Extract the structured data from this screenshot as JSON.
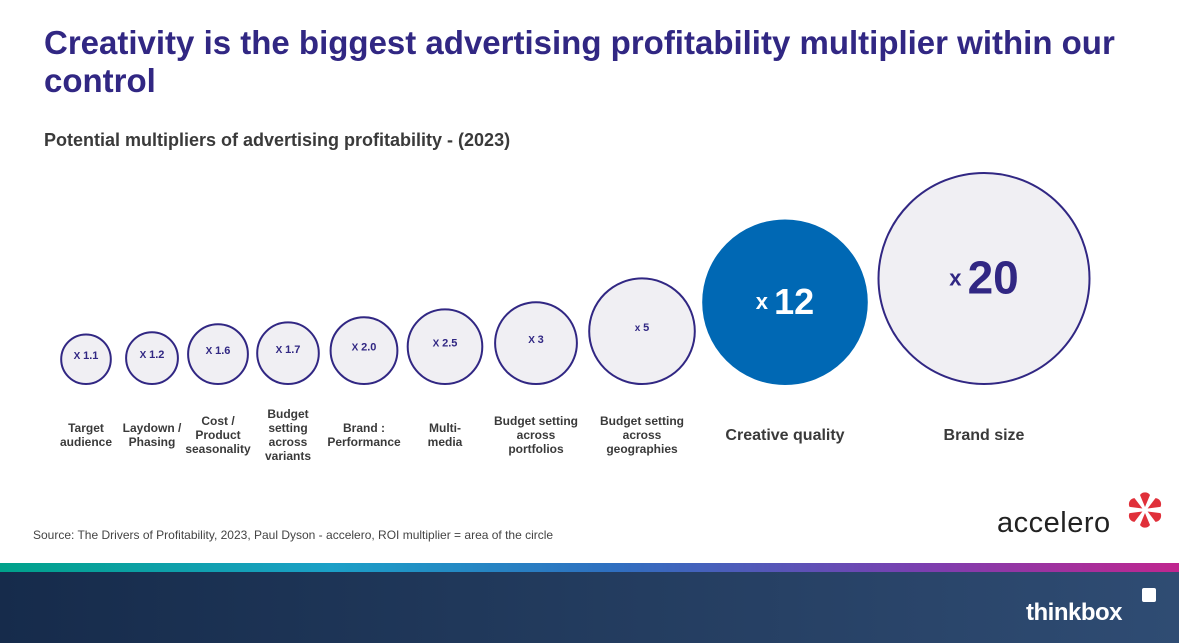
{
  "title": "Creativity is the biggest advertising profitability multiplier within our control",
  "subtitle": "Potential multipliers of advertising profitability - (2023)",
  "source": "Source: The Drivers of Profitability, 2023, Paul Dyson - accelero, ROI multiplier = area of the circle",
  "logos": {
    "accelero": "accelero",
    "thinkbox": "thinkbox"
  },
  "colors": {
    "title": "#312783",
    "bubble_fill": "#f0eff3",
    "bubble_stroke": "#312783",
    "highlight": "#0068b4",
    "accelero_mark": "#e0303a"
  },
  "chart_data": {
    "type": "bubble",
    "encoding": "ROI multiplier = area of the circle",
    "items": [
      {
        "label": "Target audience",
        "value": 1.1,
        "value_label": "X 1.1"
      },
      {
        "label": "Laydown / Phasing",
        "value": 1.2,
        "value_label": "X 1.2"
      },
      {
        "label": "Cost / Product seasonality",
        "value": 1.6,
        "value_label": "X 1.6"
      },
      {
        "label": "Budget setting across variants",
        "value": 1.7,
        "value_label": "X 1.7"
      },
      {
        "label": "Brand : Performance",
        "value": 2.0,
        "value_label": "X 2.0"
      },
      {
        "label": "Multi- media",
        "value": 2.5,
        "value_label": "X 2.5"
      },
      {
        "label": "Budget setting across portfolios",
        "value": 3,
        "value_label": "X 3"
      },
      {
        "label": "Budget setting across geographies",
        "value": 5,
        "value_label": "x 5"
      },
      {
        "label": "Creative quality",
        "value": 12,
        "value_label": "x 12",
        "highlight": true
      },
      {
        "label": "Brand size",
        "value": 20,
        "value_label": "x 20"
      }
    ]
  }
}
